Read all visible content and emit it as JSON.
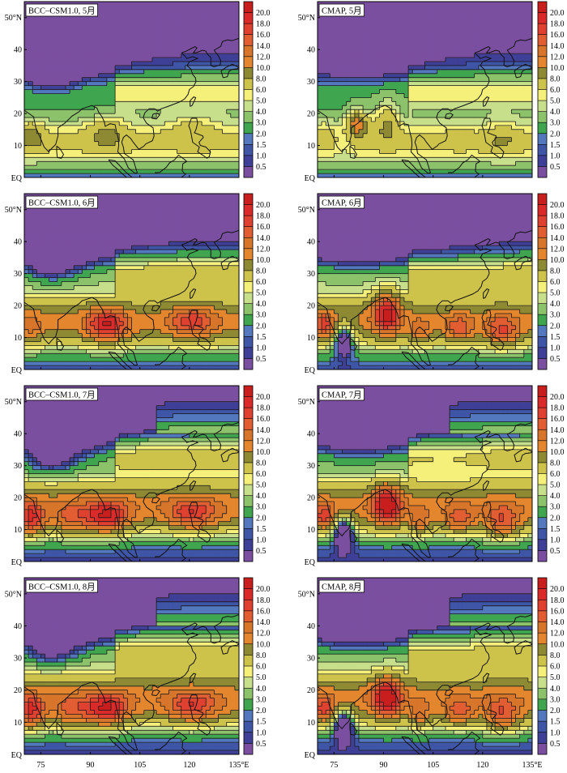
{
  "chart_data": {
    "type": "heatmap",
    "levels": [
      0.5,
      1.0,
      1.5,
      2.0,
      3.0,
      4.0,
      5.0,
      6.0,
      8.0,
      10.0,
      12.0,
      14.0,
      16.0,
      18.0,
      20.0
    ],
    "colorbar_labels": [
      "0.5",
      "1.0",
      "1.5",
      "2.0",
      "3.0",
      "4.0",
      "5.0",
      "6.0",
      "8.0",
      "10.0",
      "12.0",
      "14.0",
      "16.0",
      "18.0",
      "20.0"
    ],
    "colors": [
      "#7B4FA0",
      "#3E3F96",
      "#3F55A6",
      "#5378BE",
      "#3FA64F",
      "#8CC26A",
      "#C7DE8A",
      "#F4F07A",
      "#CDC24A",
      "#8E8A34",
      "#E3862D",
      "#D7752B",
      "#E25E32",
      "#E04030",
      "#DA2A2A",
      "#C81E1E"
    ],
    "lon_range": [
      70,
      135
    ],
    "lat_range": [
      0,
      55
    ],
    "x_ticks": [
      75,
      90,
      105,
      120,
      135
    ],
    "x_tick_labels": [
      "75",
      "90",
      "105",
      "120",
      "135°E"
    ],
    "y_ticks": [
      0,
      10,
      20,
      30,
      40,
      50
    ],
    "y_tick_labels": [
      "EQ",
      "10",
      "20",
      "30",
      "40",
      "50°N"
    ],
    "panels": [
      {
        "title": "BCC–CSM1.0, 5月",
        "model": "BCC",
        "month": 5
      },
      {
        "title": "CMAP, 5月",
        "model": "CMAP",
        "month": 5
      },
      {
        "title": "BCC–CSM1.0, 6月",
        "model": "BCC",
        "month": 6
      },
      {
        "title": "CMAP, 6月",
        "model": "CMAP",
        "month": 6
      },
      {
        "title": "BCC–CSM1.0, 7月",
        "model": "BCC",
        "month": 7
      },
      {
        "title": "CMAP, 7月",
        "model": "CMAP",
        "month": 7
      },
      {
        "title": "BCC–CSM1.0, 8月",
        "model": "BCC",
        "month": 8
      },
      {
        "title": "CMAP, 8月",
        "model": "CMAP",
        "month": 8
      }
    ]
  }
}
